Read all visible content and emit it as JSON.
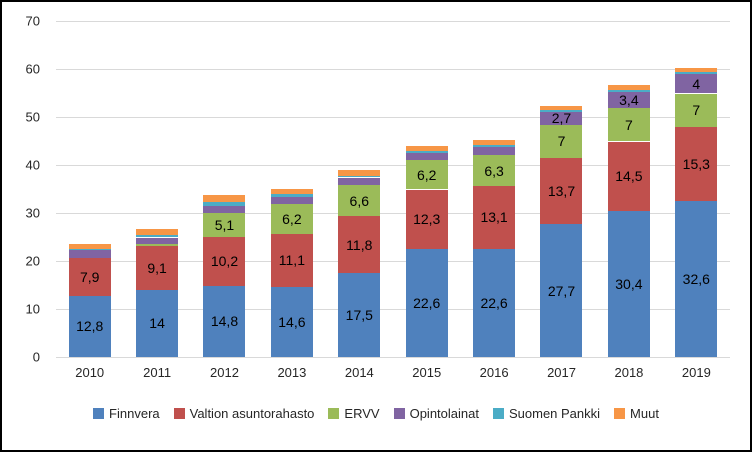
{
  "window": {
    "background": "#FFFFFF",
    "border_color": "#000000"
  },
  "chart_data": {
    "type": "bar",
    "stacked": true,
    "title": "",
    "xlabel": "",
    "ylabel": "",
    "categories": [
      "2010",
      "2011",
      "2012",
      "2013",
      "2014",
      "2015",
      "2016",
      "2017",
      "2018",
      "2019"
    ],
    "series": [
      {
        "name": "Finnvera",
        "color": "#4F81BD",
        "values": [
          12.8,
          14,
          14.8,
          14.6,
          17.5,
          22.6,
          22.6,
          27.7,
          30.4,
          32.6
        ],
        "data_labels": [
          "12,8",
          "14",
          "14,8",
          "14,6",
          "17,5",
          "22,6",
          "22,6",
          "27,7",
          "30,4",
          "32,6"
        ]
      },
      {
        "name": "Valtion asuntorahasto",
        "color": "#C0504D",
        "values": [
          7.9,
          9.1,
          10.2,
          11.1,
          11.8,
          12.3,
          13.1,
          13.7,
          14.5,
          15.3
        ],
        "data_labels": [
          "7,9",
          "9,1",
          "10,2",
          "11,1",
          "11,8",
          "12,3",
          "13,1",
          "13,7",
          "14,5",
          "15,3"
        ]
      },
      {
        "name": "ERVV",
        "color": "#9BBB59",
        "values": [
          0,
          0.5,
          5.1,
          6.2,
          6.6,
          6.2,
          6.3,
          7,
          7,
          7
        ],
        "data_labels": [
          null,
          null,
          "5,1",
          "6,2",
          "6,6",
          "6,2",
          "6,3",
          "7",
          "7",
          "7"
        ]
      },
      {
        "name": "Opintolainat",
        "color": "#8064A2",
        "values": [
          1.5,
          1.3,
          1.4,
          1.5,
          1.5,
          1.4,
          1.7,
          2.7,
          3.4,
          4
        ],
        "data_labels": [
          null,
          null,
          null,
          null,
          null,
          null,
          null,
          "2,7",
          "3,4",
          "4"
        ]
      },
      {
        "name": "Suomen Pankki",
        "color": "#4BACC6",
        "values": [
          0.4,
          0.5,
          0.8,
          0.5,
          0.4,
          0.4,
          0.4,
          0.3,
          0.4,
          0.4
        ],
        "data_labels": [
          null,
          null,
          null,
          null,
          null,
          null,
          null,
          null,
          null,
          null
        ]
      },
      {
        "name": "Muut",
        "color": "#F79646",
        "values": [
          1.0,
          1.3,
          1.4,
          1.2,
          1.1,
          1.0,
          1.2,
          0.9,
          1.0,
          1.0
        ],
        "data_labels": [
          null,
          null,
          null,
          null,
          null,
          null,
          null,
          null,
          null,
          null
        ]
      }
    ],
    "y_axis": {
      "min": 0,
      "max": 70,
      "tick_interval": 10,
      "tick_labels": [
        "0",
        "10",
        "20",
        "30",
        "40",
        "50",
        "60",
        "70"
      ]
    },
    "grid": true,
    "gridline_color": "#D9D9D9",
    "data_label_color": "#000000",
    "axis_text_color": "#262626",
    "legend_position": "bottom",
    "legend_items": [
      "Finnvera",
      "Valtion asuntorahasto",
      "ERVV",
      "Opintolainat",
      "Suomen Pankki",
      "Muut"
    ]
  }
}
